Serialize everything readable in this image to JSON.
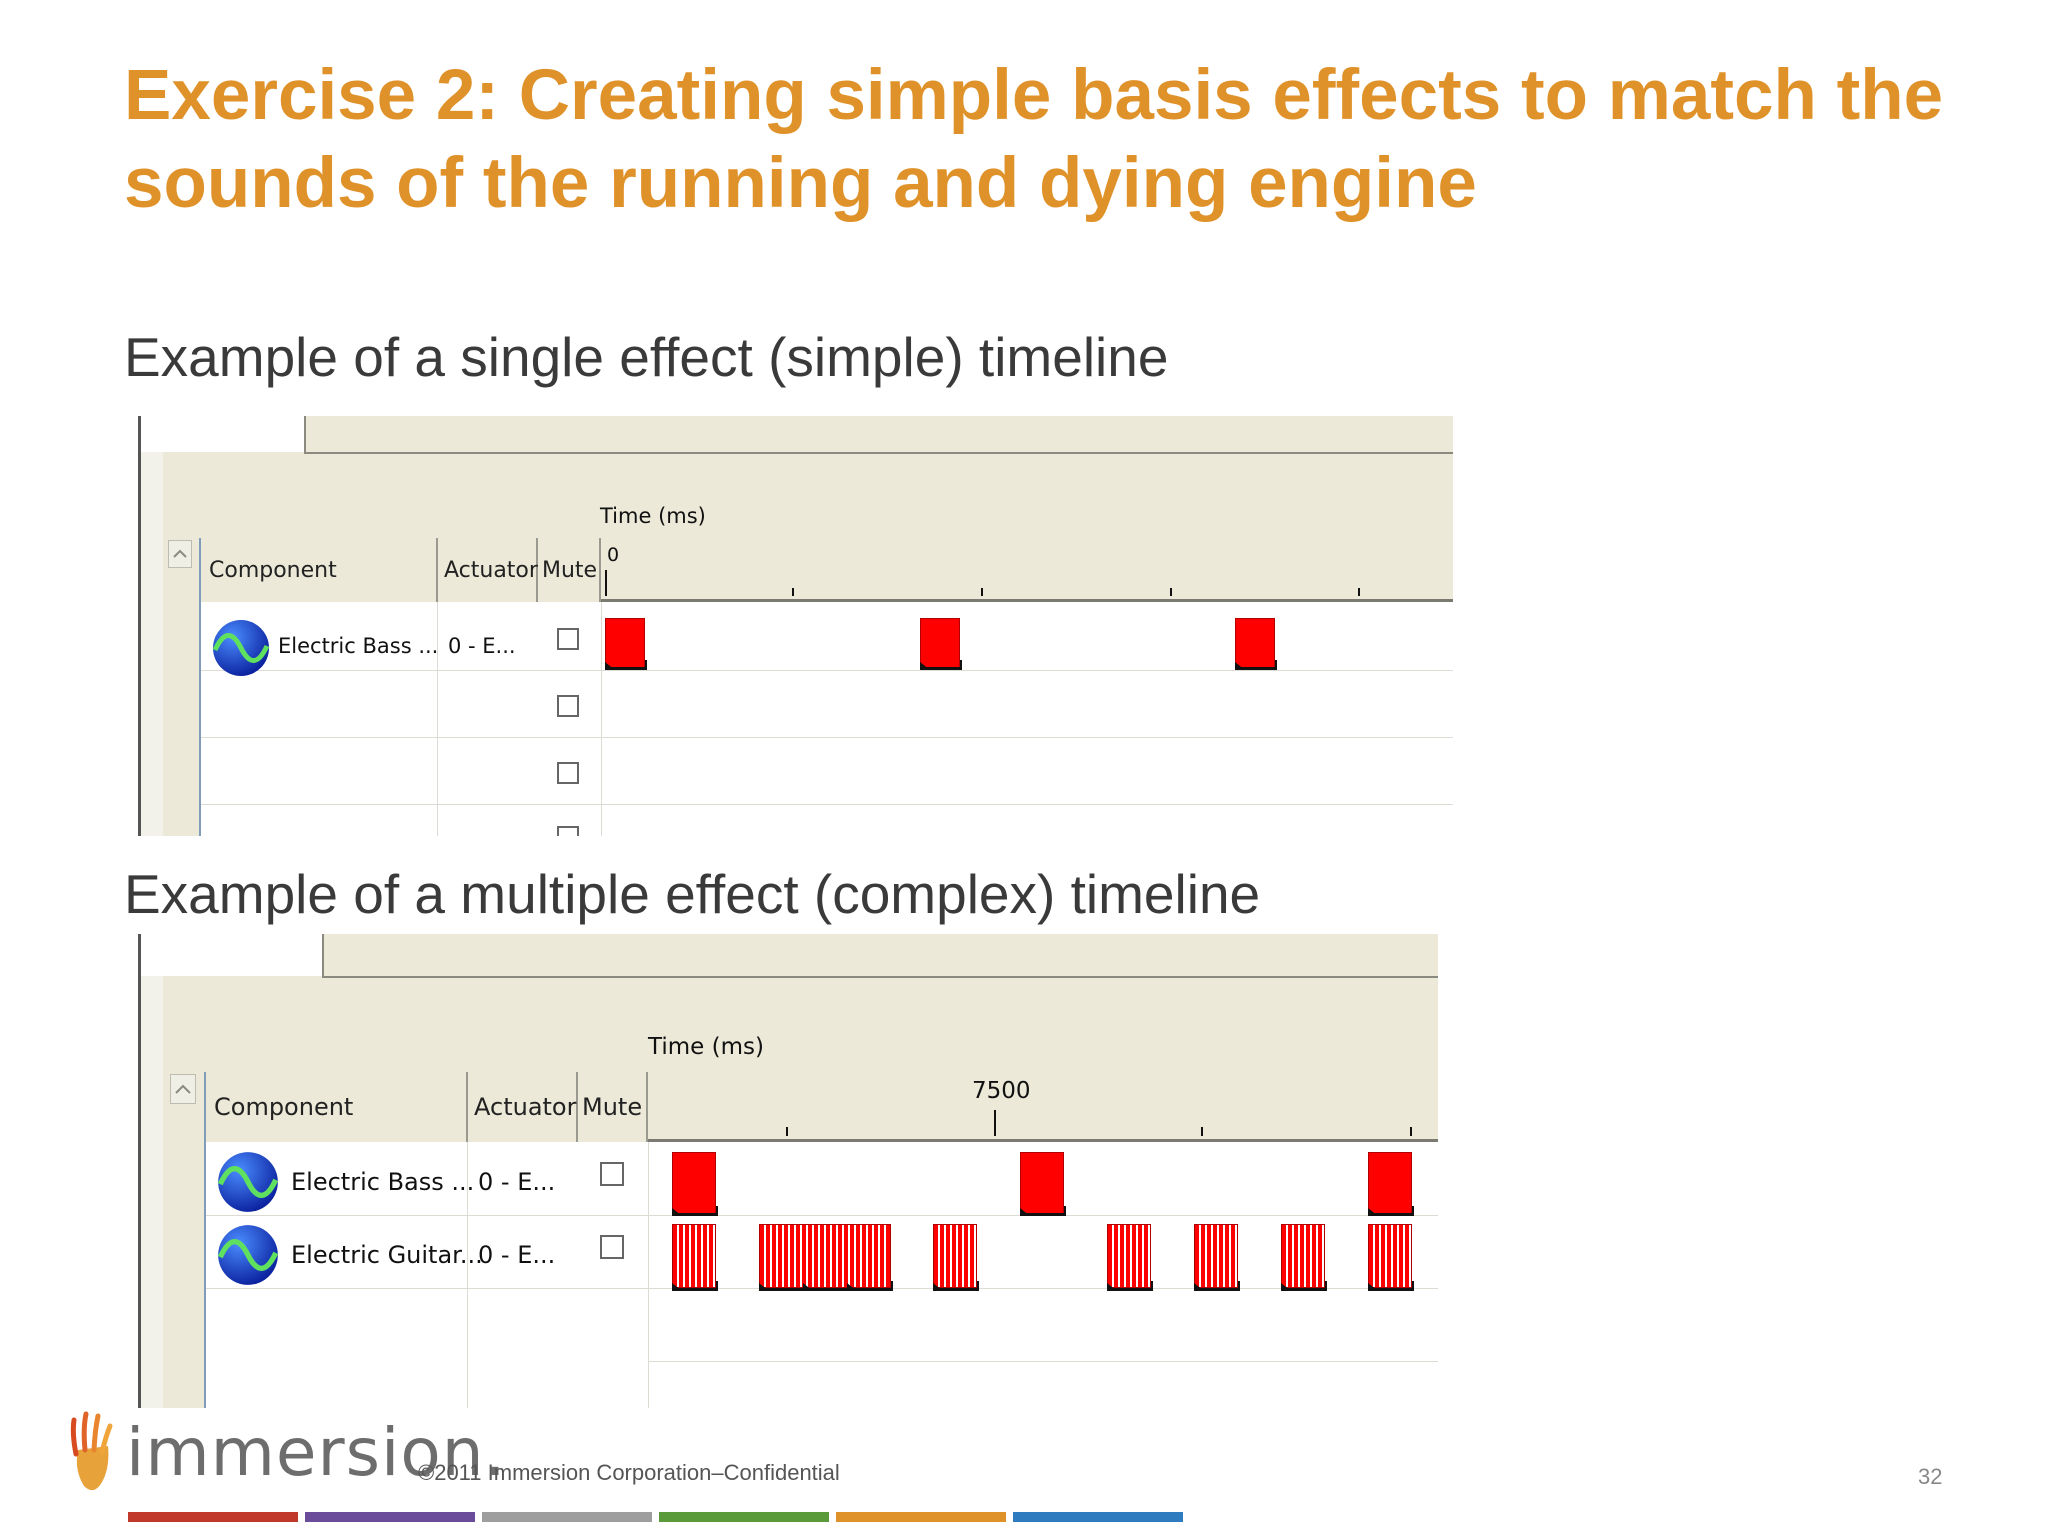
{
  "slide": {
    "title": "Exercise 2: Creating simple basis effects to match the sounds of the running and dying engine",
    "subtitle_simple": "Example of a single effect (simple) timeline",
    "subtitle_complex": "Example of a multiple effect (complex) timeline",
    "copyright": "©2011 Immersion Corporation–Confidential",
    "page_number": "32",
    "logo_text": "immersion.",
    "accent_color": "#E0922A",
    "footer_bar_colors": [
      "#C0392B",
      "#6B4C9A",
      "#9E9E9E",
      "#5A9A3A",
      "#E0922A",
      "#2E7BBF"
    ]
  },
  "simple_timeline": {
    "time_label": "Time (ms)",
    "time_value": "0",
    "columns": {
      "component": "Component",
      "actuator": "Actuator",
      "mute": "Mute"
    },
    "rows": [
      {
        "component": "Electric Bass ...",
        "actuator": "0 - E...",
        "icon": "sine-wave-icon"
      }
    ],
    "extra_mute_rows": 3
  },
  "complex_timeline": {
    "time_label": "Time (ms)",
    "time_value": "7500",
    "columns": {
      "component": "Component",
      "actuator": "Actuator",
      "mute": "Mute"
    },
    "rows": [
      {
        "component": "Electric Bass ...",
        "actuator": "0 - E...",
        "icon": "sine-wave-icon"
      },
      {
        "component": "Electric Guitar...",
        "actuator": "0 - E...",
        "icon": "sine-wave-icon"
      }
    ]
  }
}
